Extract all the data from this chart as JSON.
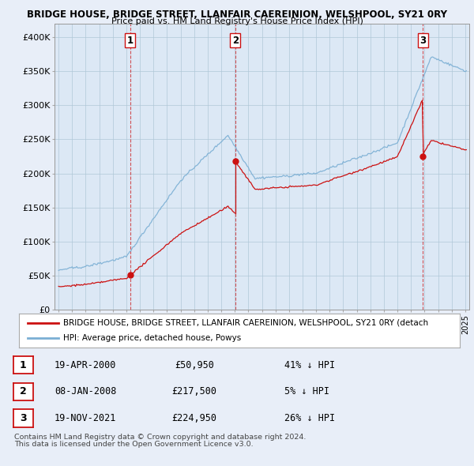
{
  "title1": "BRIDGE HOUSE, BRIDGE STREET, LLANFAIR CAEREINION, WELSHPOOL, SY21 0RY",
  "title2": "Price paid vs. HM Land Registry's House Price Index (HPI)",
  "ylim": [
    0,
    420000
  ],
  "yticks": [
    0,
    50000,
    100000,
    150000,
    200000,
    250000,
    300000,
    350000,
    400000
  ],
  "ytick_labels": [
    "£0",
    "£50K",
    "£100K",
    "£150K",
    "£200K",
    "£250K",
    "£300K",
    "£350K",
    "£400K"
  ],
  "xlim_start": 1994.7,
  "xlim_end": 2025.3,
  "hpi_color": "#7bafd4",
  "price_color": "#cc1111",
  "sale1_date": 2000.29,
  "sale1_price": 50950,
  "sale2_date": 2008.03,
  "sale2_price": 217500,
  "sale3_date": 2021.88,
  "sale3_price": 224950,
  "legend_price_label": "BRIDGE HOUSE, BRIDGE STREET, LLANFAIR CAEREINION, WELSHPOOL, SY21 0RY (detach",
  "legend_hpi_label": "HPI: Average price, detached house, Powys",
  "table_rows": [
    {
      "num": "1",
      "date": "19-APR-2000",
      "price": "£50,950",
      "pct": "41% ↓ HPI"
    },
    {
      "num": "2",
      "date": "08-JAN-2008",
      "price": "£217,500",
      "pct": "5% ↓ HPI"
    },
    {
      "num": "3",
      "date": "19-NOV-2021",
      "price": "£224,950",
      "pct": "26% ↓ HPI"
    }
  ],
  "footnote1": "Contains HM Land Registry data © Crown copyright and database right 2024.",
  "footnote2": "This data is licensed under the Open Government Licence v3.0.",
  "vline_color": "#cc1111",
  "plot_bg_color": "#dce8f5",
  "fig_bg_color": "#e8eef8"
}
